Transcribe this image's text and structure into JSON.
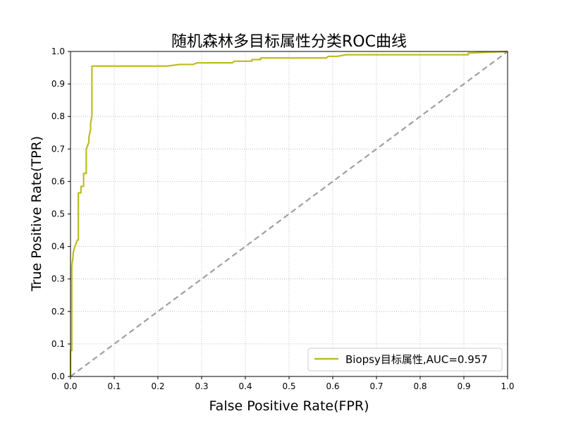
{
  "chart_data": {
    "type": "line",
    "title": "随机森林多目标属性分类ROC曲线",
    "xlabel": "False Positive Rate(FPR)",
    "ylabel": "True Positive Rate(TPR)",
    "xlim": [
      0.0,
      1.0
    ],
    "ylim": [
      0.0,
      1.0
    ],
    "xticks": [
      "0.0",
      "0.1",
      "0.2",
      "0.3",
      "0.4",
      "0.5",
      "0.6",
      "0.7",
      "0.8",
      "0.9",
      "1.0"
    ],
    "yticks": [
      "0.0",
      "0.1",
      "0.2",
      "0.3",
      "0.4",
      "0.5",
      "0.6",
      "0.7",
      "0.8",
      "0.9",
      "1.0"
    ],
    "grid": true,
    "legend_position": "lower-right",
    "series": [
      {
        "name": "Biopsy目标属性,AUC=0.957",
        "color": "#bcbd22",
        "style": "solid",
        "x": [
          0.0,
          0.0,
          0.003,
          0.003,
          0.006,
          0.006,
          0.01,
          0.013,
          0.016,
          0.018,
          0.018,
          0.024,
          0.024,
          0.03,
          0.03,
          0.036,
          0.036,
          0.042,
          0.042,
          0.046,
          0.046,
          0.049,
          0.049,
          0.2,
          0.22,
          0.25,
          0.27,
          0.28,
          0.29,
          0.3,
          0.37,
          0.375,
          0.375,
          0.415,
          0.415,
          0.435,
          0.435,
          0.52,
          0.585,
          0.59,
          0.61,
          0.63,
          0.655,
          0.76,
          0.8,
          0.91,
          0.91,
          1.0
        ],
        "y": [
          0.0,
          0.08,
          0.08,
          0.34,
          0.37,
          0.38,
          0.4,
          0.41,
          0.42,
          0.42,
          0.565,
          0.565,
          0.585,
          0.585,
          0.625,
          0.625,
          0.7,
          0.72,
          0.735,
          0.76,
          0.78,
          0.8,
          0.955,
          0.955,
          0.955,
          0.96,
          0.96,
          0.96,
          0.965,
          0.965,
          0.965,
          0.97,
          0.97,
          0.97,
          0.975,
          0.975,
          0.98,
          0.98,
          0.98,
          0.985,
          0.985,
          0.99,
          0.99,
          0.99,
          0.99,
          0.99,
          0.995,
          1.0
        ]
      },
      {
        "color": "#a0a0a0",
        "style": "dashed",
        "x": [
          0.0,
          1.0
        ],
        "y": [
          0.0,
          1.0
        ]
      }
    ]
  }
}
